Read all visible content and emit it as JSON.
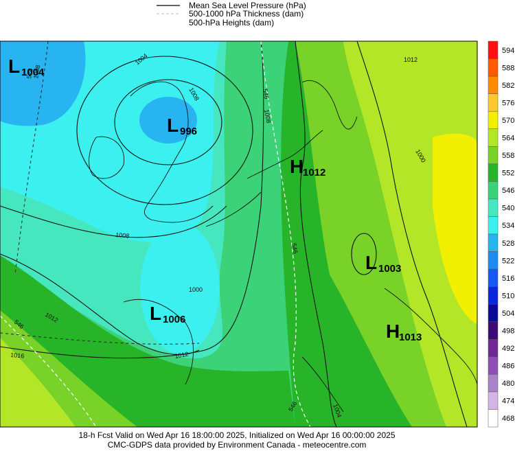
{
  "legend": [
    "Mean Sea Level Pressure (hPa)",
    "500-1000 hPa Thickness (dam)",
    "500-hPa Heights (dam)"
  ],
  "colorbar": {
    "levels": [
      "594",
      "588",
      "582",
      "576",
      "570",
      "564",
      "558",
      "552",
      "546",
      "540",
      "534",
      "528",
      "522",
      "516",
      "510",
      "504",
      "498",
      "492",
      "486",
      "480",
      "474",
      "468"
    ],
    "colors": [
      "#ff1010",
      "#ff5a00",
      "#ff8c00",
      "#ffc830",
      "#f0f000",
      "#b4e628",
      "#78d228",
      "#28b428",
      "#3cd278",
      "#46e6be",
      "#3cf0f0",
      "#28b4f0",
      "#1e8cf0",
      "#145af0",
      "#0a28dc",
      "#0a0a96",
      "#3c0a78",
      "#6e2896",
      "#8c50b4",
      "#aa82c8",
      "#d2b4e6",
      "#ffffff"
    ]
  },
  "centers": [
    {
      "letter": "L",
      "value": "1004"
    },
    {
      "letter": "L",
      "value": "996"
    },
    {
      "letter": "H",
      "value": "1012"
    },
    {
      "letter": "L",
      "value": "1003"
    },
    {
      "letter": "L",
      "value": "1006"
    },
    {
      "letter": "H",
      "value": "1013"
    }
  ],
  "contour_labels": [
    "1004",
    "1008",
    "1008",
    "1000",
    "1008",
    "1012",
    "1016",
    "1012",
    "1012",
    "546",
    "546",
    "546",
    "546",
    "1008",
    "1004",
    "528",
    "1000"
  ],
  "footer": [
    "18-h Fcst Valid on Wed Apr 16 18:00:00 2025, Initialized on Wed Apr 16 00:00:00 2025",
    "CMC-GDPS data provided by Environment Canada - meteocentre.com"
  ]
}
